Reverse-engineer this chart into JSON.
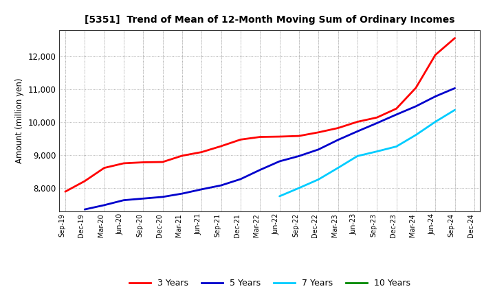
{
  "title": "[5351]  Trend of Mean of 12-Month Moving Sum of Ordinary Incomes",
  "ylabel": "Amount (million yen)",
  "background_color": "#ffffff",
  "grid_color": "#999999",
  "ylim": [
    7300,
    12800
  ],
  "yticks": [
    8000,
    9000,
    10000,
    11000,
    12000
  ],
  "x_labels": [
    "Sep-19",
    "Dec-19",
    "Mar-20",
    "Jun-20",
    "Sep-20",
    "Dec-20",
    "Mar-21",
    "Jun-21",
    "Sep-21",
    "Dec-21",
    "Mar-22",
    "Jun-22",
    "Sep-22",
    "Dec-22",
    "Mar-23",
    "Jun-23",
    "Sep-23",
    "Dec-23",
    "Mar-24",
    "Jun-24",
    "Sep-24",
    "Dec-24"
  ],
  "series": {
    "3 Years": {
      "color": "#ff0000",
      "data_x": [
        0,
        1,
        2,
        3,
        4,
        5,
        6,
        7,
        8,
        9,
        10,
        11,
        12,
        13,
        14,
        15,
        16,
        17,
        18,
        19,
        20
      ],
      "data_y": [
        7900,
        8220,
        8620,
        8760,
        8790,
        8800,
        8990,
        9100,
        9280,
        9480,
        9560,
        9570,
        9590,
        9700,
        9830,
        10020,
        10150,
        10420,
        11050,
        12050,
        12560
      ]
    },
    "5 Years": {
      "color": "#0000cc",
      "data_x": [
        1,
        2,
        3,
        4,
        5,
        6,
        7,
        8,
        9,
        10,
        11,
        12,
        13,
        14,
        15,
        16,
        17,
        18,
        19,
        20
      ],
      "data_y": [
        7360,
        7490,
        7640,
        7690,
        7740,
        7840,
        7970,
        8090,
        8280,
        8560,
        8820,
        8980,
        9180,
        9470,
        9730,
        9980,
        10240,
        10490,
        10790,
        11040
      ]
    },
    "7 Years": {
      "color": "#00ccff",
      "data_x": [
        11,
        12,
        13,
        14,
        15,
        16,
        17,
        18,
        19,
        20
      ],
      "data_y": [
        7760,
        8010,
        8270,
        8620,
        8980,
        9120,
        9270,
        9620,
        10020,
        10380
      ]
    },
    "10 Years": {
      "color": "#008800",
      "data_x": [],
      "data_y": []
    }
  },
  "legend_labels": [
    "3 Years",
    "5 Years",
    "7 Years",
    "10 Years"
  ],
  "legend_colors": [
    "#ff0000",
    "#0000cc",
    "#00ccff",
    "#008800"
  ]
}
